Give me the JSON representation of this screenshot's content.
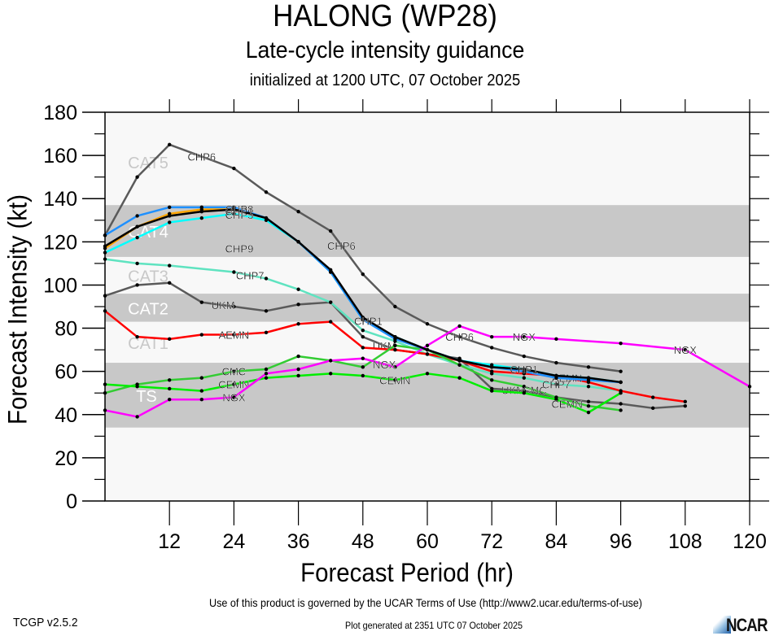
{
  "header": {
    "title": "HALONG (WP28)",
    "subtitle": "Late-cycle intensity guidance",
    "initialized": "initialized at 1200 UTC, 07 October 2025"
  },
  "footer": {
    "terms": "Use of this product is governed by the UCAR Terms of Use (http://www2.ucar.edu/terms-of-use)",
    "generated": "Plot generated at 2351 UTC   07 October 2025",
    "version": "TCGP v2.5.2",
    "logo_text": "NCAR"
  },
  "chart_data": {
    "type": "line",
    "title": "HALONG (WP28)",
    "subtitle": "Late-cycle intensity guidance",
    "xlabel": "Forecast Period (hr)",
    "ylabel": "Forecast Intensity (kt)",
    "xlim": [
      0,
      120
    ],
    "ylim": [
      0,
      180
    ],
    "xticks": [
      12,
      24,
      36,
      48,
      60,
      72,
      84,
      96,
      108,
      120
    ],
    "yticks": [
      0,
      20,
      40,
      60,
      80,
      100,
      120,
      140,
      160,
      180
    ],
    "grid": false,
    "bands": [
      {
        "label": "TS",
        "from": 34,
        "to": 64,
        "shaded": true
      },
      {
        "label": "CAT1",
        "from": 64,
        "to": 83,
        "shaded": false
      },
      {
        "label": "CAT2",
        "from": 83,
        "to": 96,
        "shaded": true
      },
      {
        "label": "CAT3",
        "from": 96,
        "to": 113,
        "shaded": false
      },
      {
        "label": "CAT4",
        "from": 113,
        "to": 137,
        "shaded": true
      },
      {
        "label": "CAT5",
        "from": 137,
        "to": 180,
        "shaded": false
      }
    ],
    "band_colors": {
      "shaded": "#c8c8c8",
      "unshaded": "#f8f8f8",
      "label_on_shaded": "#ffffff",
      "label_on_unshaded": "#c8c8c8"
    },
    "series": [
      {
        "name": "CHP6",
        "color": "#5a5a5a",
        "label_at": [
          18,
          44,
          66
        ],
        "x": [
          0,
          6,
          12,
          24,
          30,
          36,
          42,
          48,
          54,
          60,
          66,
          72,
          78,
          84,
          90,
          96
        ],
        "y": [
          123,
          150,
          165,
          154,
          143,
          134,
          125,
          105,
          90,
          82,
          76,
          71,
          67,
          64,
          62,
          60
        ]
      },
      {
        "name": "UKM",
        "color": "#5a5a5a",
        "label_at": [
          22,
          52,
          76
        ],
        "x": [
          0,
          6,
          12,
          18,
          24,
          30,
          36,
          42,
          48,
          54,
          60,
          66,
          72,
          78,
          84,
          90,
          96,
          102,
          108
        ],
        "y": [
          95,
          100,
          101,
          92,
          90,
          88,
          91,
          92,
          76,
          70,
          68,
          66,
          52,
          51,
          48,
          46,
          45,
          43,
          44
        ]
      },
      {
        "name": "CHP7",
        "color": "#5fe3c0",
        "label_at": [
          27,
          84
        ],
        "x": [
          0,
          6,
          12,
          24,
          30,
          36,
          42,
          48,
          54,
          60,
          66,
          72,
          78,
          84,
          90,
          96
        ],
        "y": [
          112,
          110,
          109,
          106,
          103,
          98,
          92,
          79,
          74,
          68,
          63,
          59,
          57,
          54,
          53,
          51
        ]
      },
      {
        "name": "AEMN",
        "color": "#ff0000",
        "label_at": [
          24,
          86
        ],
        "x": [
          0,
          6,
          12,
          18,
          24,
          30,
          36,
          42,
          48,
          54,
          60,
          66,
          72,
          78,
          84,
          90,
          96,
          102,
          108
        ],
        "y": [
          88,
          76,
          75,
          77,
          77,
          78,
          82,
          83,
          71,
          70,
          68,
          65,
          60,
          59,
          58,
          55,
          51,
          48,
          46
        ]
      },
      {
        "name": "CMC",
        "color": "#33cc33",
        "label_at": [
          24,
          80
        ],
        "x": [
          0,
          6,
          12,
          18,
          24,
          30,
          36,
          42,
          48,
          54,
          60,
          66,
          72,
          78,
          84,
          90,
          96
        ],
        "y": [
          50,
          54,
          56,
          57,
          60,
          61,
          67,
          65,
          62,
          72,
          70,
          63,
          56,
          53,
          48,
          44,
          42
        ]
      },
      {
        "name": "CEMN",
        "color": "#00ee00",
        "label_at": [
          24,
          54,
          86
        ],
        "x": [
          0,
          6,
          12,
          18,
          24,
          30,
          36,
          42,
          48,
          54,
          60,
          66,
          72,
          78,
          84,
          90,
          96
        ],
        "y": [
          54,
          53,
          52,
          51,
          54,
          57,
          58,
          59,
          58,
          56,
          59,
          57,
          51,
          50,
          47,
          41,
          50
        ]
      },
      {
        "name": "NGX",
        "color": "#ff00ff",
        "label_at": [
          24,
          52,
          78,
          108
        ],
        "x": [
          0,
          6,
          12,
          18,
          24,
          30,
          36,
          42,
          48,
          54,
          60,
          66,
          72,
          78,
          84,
          96,
          108,
          120
        ],
        "y": [
          42,
          39,
          47,
          47,
          48,
          59,
          61,
          65,
          66,
          62,
          72,
          81,
          76,
          76,
          75,
          73,
          70,
          53
        ]
      },
      {
        "name": "CHP3",
        "color": "#00ffff",
        "label_at": [
          25
        ],
        "x": [
          0,
          6,
          12,
          18,
          24,
          30,
          36,
          42,
          48,
          54,
          60,
          66,
          72,
          78,
          84,
          90,
          96
        ],
        "y": [
          115,
          122,
          129,
          131,
          133,
          130,
          120,
          106,
          84,
          76,
          70,
          65,
          63,
          61,
          58,
          57,
          55
        ]
      },
      {
        "name": "CHP8",
        "color": "#1e90ff",
        "label_at": [
          25
        ],
        "x": [
          0,
          6,
          12,
          18,
          24,
          30,
          36,
          42,
          48,
          54,
          60,
          66,
          72,
          78,
          84,
          90,
          96
        ],
        "y": [
          123,
          132,
          136,
          136,
          136,
          131,
          120,
          106,
          84,
          75,
          70,
          65,
          62,
          60,
          57,
          56,
          55
        ]
      },
      {
        "name": "CHP9",
        "color": "#ffa500",
        "label_at": [
          25
        ],
        "x": [
          0,
          6,
          12,
          18,
          24
        ],
        "y": [
          117,
          127,
          133,
          135,
          135
        ]
      },
      {
        "name": "CHP1",
        "color": "#000000",
        "label_at": [
          25,
          49,
          78
        ],
        "x": [
          0,
          6,
          12,
          18,
          24,
          30,
          36,
          42,
          48,
          54,
          60,
          66,
          72,
          78,
          84,
          90,
          96
        ],
        "y": [
          118,
          127,
          132,
          134,
          135,
          131,
          120,
          107,
          85,
          76,
          70,
          65,
          62,
          61,
          58,
          57,
          55
        ]
      }
    ]
  }
}
